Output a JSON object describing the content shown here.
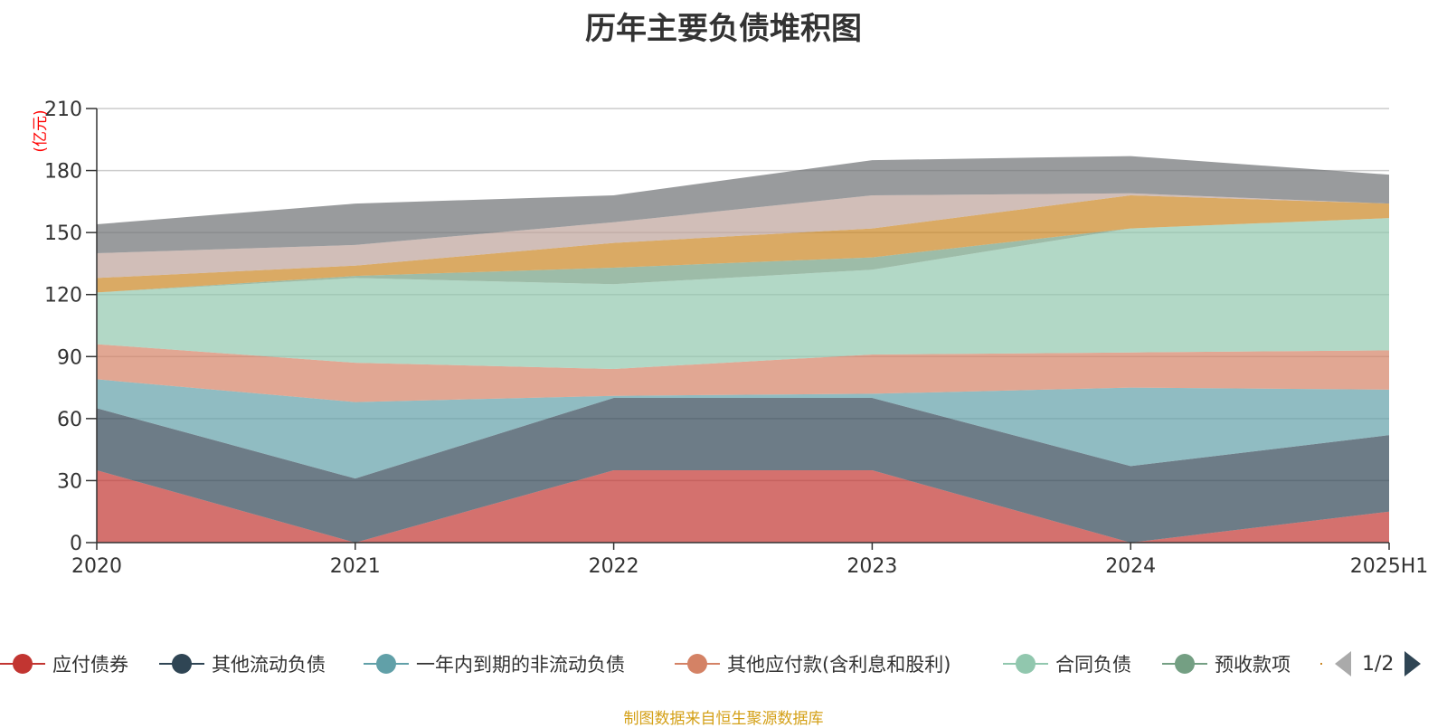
{
  "title": "历年主要负债堆积图",
  "source_note": "制图数据来自恒生聚源数据库",
  "pager": {
    "text": "1/2"
  },
  "legend": [
    {
      "name": "应付债券",
      "color": "#c23531"
    },
    {
      "name": "其他流动负债",
      "color": "#2f4554"
    },
    {
      "name": "一年内到期的非流动负债",
      "color": "#61a0a8"
    },
    {
      "name": "其他应付款(含利息和股利)",
      "color": "#d48265"
    },
    {
      "name": "合同负债",
      "color": "#91c7ae"
    },
    {
      "name": "预收款项",
      "color": "#749f83"
    },
    {
      "name": "",
      "color": "#ca8622"
    }
  ],
  "chart_data": {
    "type": "area",
    "stacked": true,
    "unit_label": "(亿元)",
    "categories": [
      "2020",
      "2021",
      "2022",
      "2023",
      "2024",
      "2025H1"
    ],
    "ylim": [
      0,
      210
    ],
    "yticks": [
      0,
      30,
      60,
      90,
      120,
      150,
      180,
      210
    ],
    "grid": true,
    "series": [
      {
        "name": "应付债券",
        "color": "#c23531",
        "values": [
          35,
          0,
          35,
          35,
          0,
          15
        ]
      },
      {
        "name": "其他流动负债",
        "color": "#2f4554",
        "values": [
          30,
          31,
          35,
          35,
          37,
          37
        ]
      },
      {
        "name": "一年内到期的非流动负债",
        "color": "#61a0a8",
        "values": [
          14,
          37,
          1,
          2,
          38,
          22
        ]
      },
      {
        "name": "其他应付款(含利息和股利)",
        "color": "#d48265",
        "values": [
          17,
          19,
          13,
          19,
          17,
          19
        ]
      },
      {
        "name": "合同负债",
        "color": "#91c7ae",
        "values": [
          25,
          41,
          41,
          41,
          60,
          64
        ]
      },
      {
        "name": "预收款项",
        "color": "#749f83",
        "values": [
          0,
          1,
          8,
          6,
          0,
          0
        ]
      },
      {
        "color": "#ca8622",
        "values": [
          7,
          5,
          12,
          14,
          16,
          7
        ]
      },
      {
        "color": "#bda29a",
        "values": [
          12,
          10,
          10,
          16,
          1,
          0
        ]
      },
      {
        "color": "#6e7074",
        "values": [
          14,
          20,
          13,
          17,
          18,
          14
        ]
      }
    ]
  }
}
